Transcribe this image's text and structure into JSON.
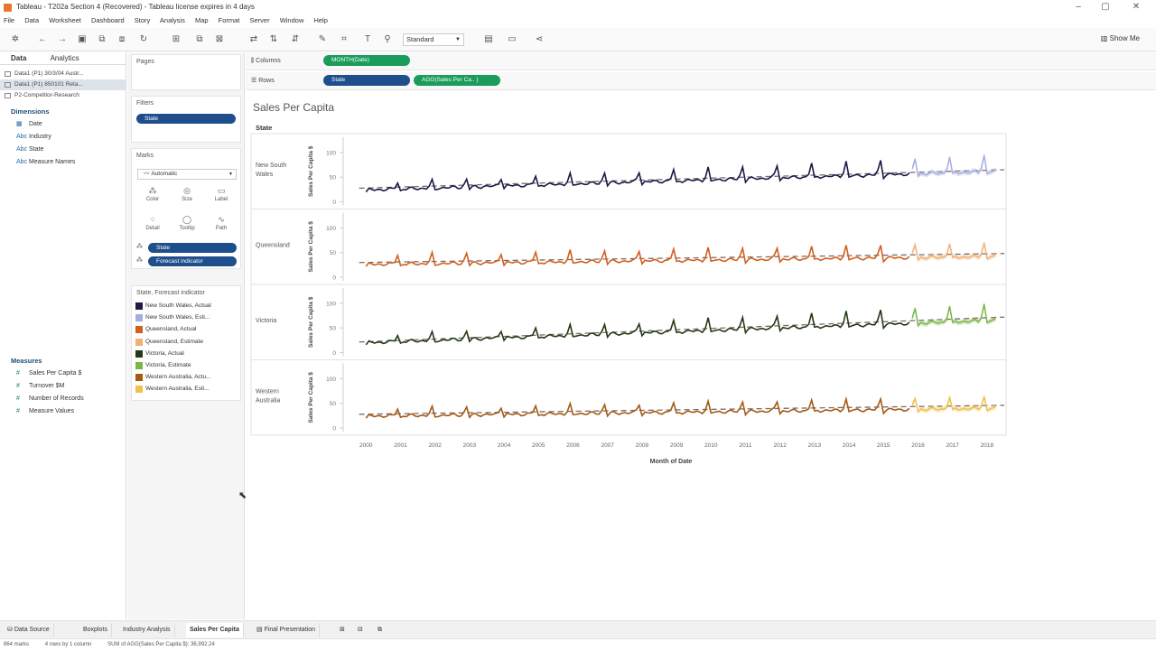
{
  "window": {
    "title": "Tableau - T202a Section 4 (Recovered) - Tableau license expires in 4 days",
    "minimize": "–",
    "maximize": "▢",
    "close": "✕"
  },
  "menu": [
    "File",
    "Data",
    "Worksheet",
    "Dashboard",
    "Story",
    "Analysis",
    "Map",
    "Format",
    "Server",
    "Window",
    "Help"
  ],
  "toolbar": {
    "fit": "Standard",
    "show_me": "Show Me"
  },
  "data_pane": {
    "tabs": [
      "Data",
      "Analytics"
    ],
    "data_sources": [
      "Data1 (P1) 30/3/04 Austr...",
      "Data1 (P1) 850101 Reta...",
      "P2-Competitor-Research"
    ],
    "dimensions_header": "Dimensions",
    "dimensions": [
      "Date",
      "Industry",
      "State",
      "Measure Names"
    ],
    "measures_header": "Measures",
    "measures": [
      "Sales Per Capita $",
      "Turnover $M",
      "Number of Records",
      "Measure Values"
    ]
  },
  "shelves": {
    "pages": "Pages",
    "filters": "Filters",
    "filter_pills": [
      "State"
    ],
    "marks": "Marks",
    "mark_type": "Automatic",
    "mark_buttons": [
      "Color",
      "Size",
      "Label",
      "Detail",
      "Tooltip",
      "Path"
    ],
    "mark_pills": [
      "State",
      "Forecast indicator"
    ],
    "legend_title": "State, Forecast indicator",
    "legend": [
      {
        "label": "New South Wales, Actual",
        "color": "#1c1947"
      },
      {
        "label": "New South Wales, Esti...",
        "color": "#a3aee0"
      },
      {
        "label": "Queensland, Actual",
        "color": "#d35f1d"
      },
      {
        "label": "Queensland, Estimate",
        "color": "#efb274"
      },
      {
        "label": "Victoria, Actual",
        "color": "#233a16"
      },
      {
        "label": "Victoria, Estimate",
        "color": "#7ab648"
      },
      {
        "label": "Western Australia, Actu...",
        "color": "#a35a12"
      },
      {
        "label": "Western Australia, Esti...",
        "color": "#f0c04a"
      }
    ]
  },
  "columns_shelf": {
    "label": "Columns",
    "pill": "MONTH(Date)"
  },
  "rows_shelf": {
    "label": "Rows",
    "pills": [
      "State",
      "AGG(Sales Per Ca.. )"
    ]
  },
  "view": {
    "title": "Sales Per Capita",
    "state_header": "State",
    "x_axis_title": "Month of Date",
    "y_axis_title": "Sales Per Capita $"
  },
  "chart_data": {
    "type": "line",
    "title": "Sales Per Capita",
    "xlabel": "Month of Date",
    "ylabel": "Sales Per Capita $",
    "x_ticks": [
      "2000",
      "2001",
      "2002",
      "2003",
      "2004",
      "2005",
      "2006",
      "2007",
      "2008",
      "2009",
      "2010",
      "2011",
      "2012",
      "2013",
      "2014",
      "2015",
      "2016",
      "2017",
      "2018"
    ],
    "y_ticks": [
      0,
      50,
      100
    ],
    "ylim": [
      0,
      120
    ],
    "grid": false,
    "forecast_start": 2015.8,
    "panes": [
      {
        "state": "New South Wales",
        "state_lines": [
          "New South",
          "Wales"
        ],
        "actual_color": "#1c1947",
        "estimate_color": "#a3aee0",
        "trend": [
          28,
          65
        ],
        "base": [
          24,
          62
        ],
        "peak": [
          12,
          34
        ]
      },
      {
        "state": "Queensland",
        "state_lines": [
          "Queensland"
        ],
        "actual_color": "#d35f1d",
        "estimate_color": "#efb274",
        "trend": [
          30,
          48
        ],
        "base": [
          26,
          42
        ],
        "peak": [
          18,
          28
        ]
      },
      {
        "state": "Victoria",
        "state_lines": [
          "Victoria"
        ],
        "actual_color": "#233a16",
        "estimate_color": "#7ab648",
        "trend": [
          22,
          72
        ],
        "base": [
          20,
          66
        ],
        "peak": [
          12,
          34
        ]
      },
      {
        "state": "Western Australia",
        "state_lines": [
          "Western",
          "Australia"
        ],
        "actual_color": "#a35a12",
        "estimate_color": "#f0c04a",
        "trend": [
          28,
          46
        ],
        "base": [
          24,
          40
        ],
        "peak": [
          14,
          24
        ]
      }
    ]
  },
  "sheet_tabs": [
    "Data Source",
    "Boxplots",
    "Industry Analysis",
    "Sales Per Capita",
    "Final Presentation"
  ],
  "status": [
    "864 marks",
    "4 rows by 1 column",
    "SUM of AGG(Sales Per Capita $): 36,992.24"
  ]
}
